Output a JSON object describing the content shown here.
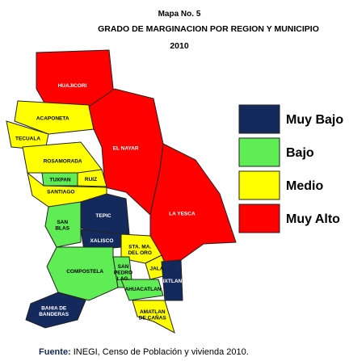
{
  "header": {
    "line1": "Mapa No. 5",
    "line2": "GRADO DE MARGINACION POR REGION Y MUNICIPIO",
    "line3": "2010"
  },
  "legend": [
    {
      "label": "Muy Bajo",
      "color": "#14295c"
    },
    {
      "label": "Bajo",
      "color": "#5fec55"
    },
    {
      "label": "Medio",
      "color": "#ffff00"
    },
    {
      "label": "Muy Alto",
      "color": "#ff0000"
    }
  ],
  "regions": [
    {
      "label": [
        "HUAJICORI"
      ],
      "color": "#ff0000"
    },
    {
      "label": [
        "ACAPONETA"
      ],
      "color": "#ffff00"
    },
    {
      "label": [
        "TECUALA"
      ],
      "color": "#ffff00"
    },
    {
      "label": [
        "ROSAMORADA"
      ],
      "color": "#ffff00"
    },
    {
      "label": [
        "EL NAYAR"
      ],
      "color": "#ff0000"
    },
    {
      "label": [
        "TUXPAN"
      ],
      "color": "#5fec55"
    },
    {
      "label": [
        "RUIZ"
      ],
      "color": "#ffff00"
    },
    {
      "label": [
        "SANTIAGO"
      ],
      "color": "#ffff00"
    },
    {
      "label": [
        "SAN",
        "BLAS"
      ],
      "color": "#5fec55"
    },
    {
      "label": [
        "TEPIC"
      ],
      "color": "#14295c"
    },
    {
      "label": [
        "LA YESCA"
      ],
      "color": "#ff0000"
    },
    {
      "label": [
        "XALISCO"
      ],
      "color": "#14295c"
    },
    {
      "label": [
        "STA. MA.",
        "DEL ORO"
      ],
      "color": "#ffff00"
    },
    {
      "label": [
        "COMPOSTELA"
      ],
      "color": "#5fec55"
    },
    {
      "label": [
        "SAN",
        "PEDRO",
        "LAG."
      ],
      "color": "#5fec55"
    },
    {
      "label": [
        "JALA"
      ],
      "color": "#ffff00"
    },
    {
      "label": [
        "AHUACATLAN"
      ],
      "color": "#5fec55"
    },
    {
      "label": [
        "IXTLAN"
      ],
      "color": "#14295c"
    },
    {
      "label": [
        "AMATLAN",
        "DE CAÑAS"
      ],
      "color": "#ffff00"
    },
    {
      "label": [
        "BAHIA DE",
        "BANDERAS"
      ],
      "color": "#14295c"
    }
  ],
  "source": {
    "label": "Fuente:",
    "text": "INEGI, Censo de Población y vivienda 2010."
  }
}
